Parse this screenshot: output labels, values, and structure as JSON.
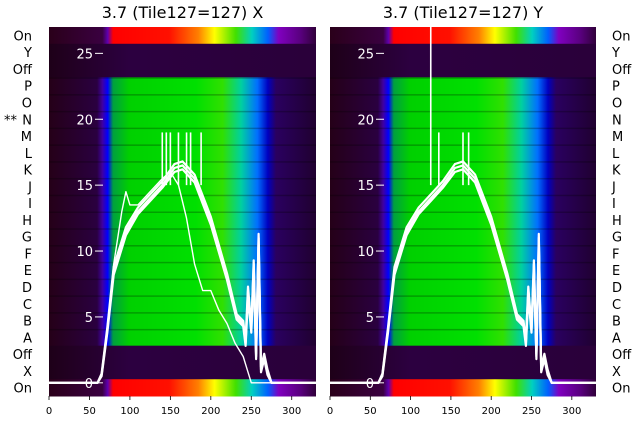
{
  "chart_data": [
    {
      "type": "heatmap",
      "title": "3.7 (Tile127=127) X",
      "xlim": [
        0,
        330
      ],
      "x_ticks": [
        0,
        50,
        100,
        150,
        200,
        250,
        300
      ],
      "rows_left": [
        "On",
        "Y",
        "Off",
        "P",
        "O",
        "N",
        "M",
        "L",
        "K",
        "J",
        "I",
        "H",
        "G",
        "F",
        "E",
        "D",
        "C",
        "B",
        "A",
        "Off",
        "X",
        "On"
      ],
      "row_marker": "**",
      "overlay_ylim": [
        -1,
        27
      ],
      "overlay_ticks": [
        0,
        5,
        10,
        15,
        20,
        25
      ],
      "traces": [
        {
          "x": [
            0,
            60,
            65,
            72,
            80,
            95,
            110,
            125,
            140,
            155,
            165,
            180,
            200,
            220,
            232,
            240,
            243,
            246,
            250,
            253,
            256,
            259,
            262,
            266,
            270,
            275,
            330
          ],
          "y": [
            0,
            0,
            0.6,
            4,
            8.5,
            11.5,
            13,
            14,
            15,
            16.3,
            16.5,
            15.5,
            12.3,
            8,
            5,
            4.5,
            3,
            7,
            4,
            9,
            2,
            11,
            1,
            2,
            0.8,
            0,
            0
          ]
        },
        {
          "x": [
            0,
            60,
            65,
            72,
            80,
            95,
            110,
            125,
            140,
            155,
            165,
            180,
            200,
            220,
            232,
            240,
            243,
            246,
            250,
            253,
            256,
            259,
            262,
            266,
            270,
            275,
            330
          ],
          "y": [
            0,
            0,
            0.5,
            3.8,
            8.2,
            11.2,
            12.8,
            13.8,
            14.8,
            16,
            16.2,
            15.2,
            12,
            7.8,
            4.8,
            4.3,
            2.8,
            6.5,
            3.8,
            8.5,
            1.8,
            10.5,
            0.8,
            1.8,
            0.6,
            0,
            0
          ]
        },
        {
          "x": [
            0,
            60,
            65,
            72,
            80,
            95,
            110,
            125,
            140,
            155,
            165,
            180,
            200,
            220,
            232,
            240,
            243,
            246,
            250,
            253,
            256,
            259,
            262,
            266,
            270,
            275,
            330
          ],
          "y": [
            0,
            0,
            0.7,
            4.2,
            8.8,
            11.8,
            13.3,
            14.3,
            15.3,
            16.6,
            16.8,
            15.8,
            12.6,
            8.3,
            5.2,
            4.7,
            3.2,
            7.3,
            4.2,
            9.3,
            2.2,
            11.3,
            1.2,
            2.2,
            1,
            0,
            0
          ]
        },
        {
          "x": [
            0,
            60,
            65,
            72,
            80,
            90,
            95,
            100,
            110,
            125,
            140,
            150,
            160,
            170,
            180,
            190,
            200,
            210,
            220,
            230,
            240,
            245,
            250,
            260,
            330
          ],
          "y": [
            0,
            0,
            0.5,
            4,
            9,
            13,
            14.5,
            13.5,
            13.5,
            14.5,
            15.5,
            16,
            15,
            12.5,
            9,
            7,
            7,
            5.5,
            4.5,
            3,
            2,
            1,
            0,
            0,
            0
          ]
        }
      ],
      "spikes_x": [
        140,
        145,
        150,
        160,
        170,
        175,
        188
      ]
    },
    {
      "type": "heatmap",
      "title": "3.7 (Tile127=127) Y",
      "xlim": [
        0,
        330
      ],
      "x_ticks": [
        0,
        50,
        100,
        150,
        200,
        250,
        300
      ],
      "rows_right": [
        "On",
        "Y",
        "Off",
        "P",
        "O",
        "N",
        "M",
        "L",
        "K",
        "J",
        "I",
        "H",
        "G",
        "F",
        "E",
        "D",
        "C",
        "B",
        "A",
        "Off",
        "X",
        "On"
      ],
      "overlay_ylim": [
        -1,
        27
      ],
      "overlay_ticks": [
        0,
        5,
        10,
        15,
        20,
        25
      ],
      "traces": [
        {
          "x": [
            0,
            60,
            65,
            72,
            80,
            95,
            110,
            125,
            140,
            155,
            165,
            180,
            200,
            220,
            232,
            240,
            243,
            246,
            250,
            253,
            256,
            259,
            262,
            266,
            270,
            275,
            330
          ],
          "y": [
            0,
            0,
            0.6,
            4,
            8.5,
            11.5,
            13,
            14,
            15,
            16.3,
            16.5,
            15.5,
            12.3,
            8,
            5,
            4.5,
            3,
            7,
            4,
            9,
            2,
            11,
            1,
            2,
            0.8,
            0,
            0
          ]
        },
        {
          "x": [
            0,
            60,
            65,
            72,
            80,
            95,
            110,
            125,
            140,
            155,
            165,
            180,
            200,
            220,
            232,
            240,
            243,
            246,
            250,
            253,
            256,
            259,
            262,
            266,
            270,
            275,
            330
          ],
          "y": [
            0,
            0,
            0.5,
            3.8,
            8.2,
            11.2,
            12.8,
            13.8,
            14.8,
            16,
            16.2,
            15.2,
            12,
            7.8,
            4.8,
            4.3,
            2.8,
            6.5,
            3.8,
            8.5,
            1.8,
            10.5,
            0.8,
            1.8,
            0.6,
            0,
            0
          ]
        },
        {
          "x": [
            0,
            60,
            65,
            72,
            80,
            95,
            110,
            125,
            140,
            155,
            165,
            180,
            200,
            220,
            232,
            240,
            243,
            246,
            250,
            253,
            256,
            259,
            262,
            266,
            270,
            275,
            330
          ],
          "y": [
            0,
            0,
            0.7,
            4.2,
            8.8,
            11.8,
            13.3,
            14.3,
            15.3,
            16.6,
            16.8,
            15.8,
            12.6,
            8.3,
            5.2,
            4.7,
            3.2,
            7.3,
            4.2,
            9.3,
            2.2,
            11.3,
            1.2,
            2.2,
            1,
            0,
            0
          ]
        }
      ],
      "spikes_x": [
        125,
        135,
        165,
        172
      ]
    }
  ]
}
